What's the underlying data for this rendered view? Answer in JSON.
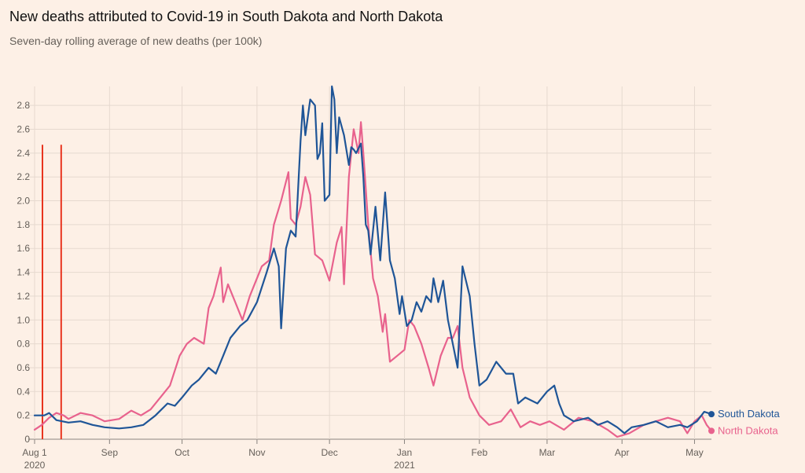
{
  "header": {
    "title": "New deaths attributed to Covid-19 in South Dakota and North Dakota",
    "subtitle": "Seven-day rolling average of new deaths (per 100k)"
  },
  "colors": {
    "background": "#fdf0e6",
    "south_dakota": "#1f5597",
    "north_dakota": "#e8628d",
    "markers": "#e8351f",
    "grid": "#e6d9cf"
  },
  "chart_data": {
    "type": "line",
    "title": "New deaths attributed to Covid-19 in South Dakota and North Dakota",
    "subtitle": "Seven-day rolling average of new deaths (per 100k)",
    "xlabel": "",
    "ylabel": "",
    "ylim": [
      0,
      2.9
    ],
    "xlim": [
      "2020-08-01",
      "2021-05-08"
    ],
    "grid": true,
    "y_ticks": [
      0,
      0.2,
      0.4,
      0.6,
      0.8,
      1.0,
      1.2,
      1.4,
      1.6,
      1.8,
      2.0,
      2.2,
      2.4,
      2.6,
      2.8
    ],
    "x_ticks": [
      {
        "date": "2020-08-01",
        "label": "Aug 1",
        "sub": "2020"
      },
      {
        "date": "2020-09-01",
        "label": "Sep",
        "sub": ""
      },
      {
        "date": "2020-10-01",
        "label": "Oct",
        "sub": ""
      },
      {
        "date": "2020-11-01",
        "label": "Nov",
        "sub": ""
      },
      {
        "date": "2020-12-01",
        "label": "Dec",
        "sub": ""
      },
      {
        "date": "2021-01-01",
        "label": "Jan",
        "sub": "2021"
      },
      {
        "date": "2021-02-01",
        "label": "Feb",
        "sub": ""
      },
      {
        "date": "2021-03-01",
        "label": "Mar",
        "sub": ""
      },
      {
        "date": "2021-04-01",
        "label": "Apr",
        "sub": ""
      },
      {
        "date": "2021-05-01",
        "label": "May",
        "sub": ""
      }
    ],
    "markers": [
      {
        "date": "2020-08-01",
        "height": 2.47
      },
      {
        "date": "2020-08-12",
        "height": 2.47
      }
    ],
    "series": [
      {
        "name": "South Dakota",
        "points": [
          [
            "2020-08-01",
            0.2
          ],
          [
            "2020-08-05",
            0.2
          ],
          [
            "2020-08-07",
            0.22
          ],
          [
            "2020-08-10",
            0.16
          ],
          [
            "2020-08-15",
            0.14
          ],
          [
            "2020-08-20",
            0.15
          ],
          [
            "2020-08-25",
            0.12
          ],
          [
            "2020-08-30",
            0.1
          ],
          [
            "2020-09-05",
            0.09
          ],
          [
            "2020-09-10",
            0.1
          ],
          [
            "2020-09-15",
            0.12
          ],
          [
            "2020-09-20",
            0.2
          ],
          [
            "2020-09-25",
            0.3
          ],
          [
            "2020-09-28",
            0.28
          ],
          [
            "2020-10-01",
            0.35
          ],
          [
            "2020-10-05",
            0.45
          ],
          [
            "2020-10-08",
            0.5
          ],
          [
            "2020-10-12",
            0.6
          ],
          [
            "2020-10-15",
            0.55
          ],
          [
            "2020-10-18",
            0.7
          ],
          [
            "2020-10-21",
            0.85
          ],
          [
            "2020-10-25",
            0.95
          ],
          [
            "2020-10-28",
            1.0
          ],
          [
            "2020-11-01",
            1.15
          ],
          [
            "2020-11-05",
            1.4
          ],
          [
            "2020-11-08",
            1.6
          ],
          [
            "2020-11-10",
            1.45
          ],
          [
            "2020-11-11",
            0.93
          ],
          [
            "2020-11-13",
            1.6
          ],
          [
            "2020-11-15",
            1.75
          ],
          [
            "2020-11-17",
            1.7
          ],
          [
            "2020-11-19",
            2.5
          ],
          [
            "2020-11-20",
            2.8
          ],
          [
            "2020-11-21",
            2.55
          ],
          [
            "2020-11-23",
            2.85
          ],
          [
            "2020-11-25",
            2.8
          ],
          [
            "2020-11-26",
            2.35
          ],
          [
            "2020-11-27",
            2.4
          ],
          [
            "2020-11-28",
            2.65
          ],
          [
            "2020-11-29",
            2.0
          ],
          [
            "2020-12-01",
            2.05
          ],
          [
            "2020-12-02",
            2.96
          ],
          [
            "2020-12-03",
            2.85
          ],
          [
            "2020-12-04",
            2.4
          ],
          [
            "2020-12-05",
            2.7
          ],
          [
            "2020-12-07",
            2.55
          ],
          [
            "2020-12-09",
            2.3
          ],
          [
            "2020-12-10",
            2.45
          ],
          [
            "2020-12-11",
            2.43
          ],
          [
            "2020-12-12",
            2.4
          ],
          [
            "2020-12-14",
            2.48
          ],
          [
            "2020-12-15",
            2.2
          ],
          [
            "2020-12-16",
            1.8
          ],
          [
            "2020-12-17",
            1.75
          ],
          [
            "2020-12-18",
            1.55
          ],
          [
            "2020-12-20",
            1.95
          ],
          [
            "2020-12-22",
            1.5
          ],
          [
            "2020-12-24",
            2.07
          ],
          [
            "2020-12-26",
            1.5
          ],
          [
            "2020-12-28",
            1.35
          ],
          [
            "2020-12-30",
            1.05
          ],
          [
            "2020-12-31",
            1.2
          ],
          [
            "2021-01-02",
            0.95
          ],
          [
            "2021-01-04",
            1.0
          ],
          [
            "2021-01-06",
            1.15
          ],
          [
            "2021-01-08",
            1.07
          ],
          [
            "2021-01-10",
            1.2
          ],
          [
            "2021-01-12",
            1.15
          ],
          [
            "2021-01-13",
            1.35
          ],
          [
            "2021-01-15",
            1.15
          ],
          [
            "2021-01-17",
            1.33
          ],
          [
            "2021-01-19",
            1.0
          ],
          [
            "2021-01-21",
            0.8
          ],
          [
            "2021-01-23",
            0.6
          ],
          [
            "2021-01-25",
            1.45
          ],
          [
            "2021-01-28",
            1.2
          ],
          [
            "2021-01-30",
            0.8
          ],
          [
            "2021-02-01",
            0.45
          ],
          [
            "2021-02-04",
            0.5
          ],
          [
            "2021-02-08",
            0.65
          ],
          [
            "2021-02-12",
            0.55
          ],
          [
            "2021-02-15",
            0.55
          ],
          [
            "2021-02-17",
            0.3
          ],
          [
            "2021-02-20",
            0.35
          ],
          [
            "2021-02-25",
            0.3
          ],
          [
            "2021-03-01",
            0.4
          ],
          [
            "2021-03-04",
            0.45
          ],
          [
            "2021-03-06",
            0.3
          ],
          [
            "2021-03-08",
            0.2
          ],
          [
            "2021-03-12",
            0.15
          ],
          [
            "2021-03-18",
            0.18
          ],
          [
            "2021-03-22",
            0.12
          ],
          [
            "2021-03-26",
            0.15
          ],
          [
            "2021-03-30",
            0.1
          ],
          [
            "2021-04-02",
            0.05
          ],
          [
            "2021-04-05",
            0.1
          ],
          [
            "2021-04-10",
            0.12
          ],
          [
            "2021-04-15",
            0.15
          ],
          [
            "2021-04-20",
            0.1
          ],
          [
            "2021-04-25",
            0.12
          ],
          [
            "2021-04-28",
            0.1
          ],
          [
            "2021-05-02",
            0.15
          ],
          [
            "2021-05-05",
            0.23
          ],
          [
            "2021-05-08",
            0.21
          ]
        ]
      },
      {
        "name": "North Dakota",
        "points": [
          [
            "2020-08-01",
            0.08
          ],
          [
            "2020-08-04",
            0.12
          ],
          [
            "2020-08-07",
            0.18
          ],
          [
            "2020-08-10",
            0.22
          ],
          [
            "2020-08-13",
            0.2
          ],
          [
            "2020-08-15",
            0.17
          ],
          [
            "2020-08-20",
            0.22
          ],
          [
            "2020-08-25",
            0.2
          ],
          [
            "2020-08-30",
            0.15
          ],
          [
            "2020-09-05",
            0.17
          ],
          [
            "2020-09-10",
            0.24
          ],
          [
            "2020-09-14",
            0.2
          ],
          [
            "2020-09-18",
            0.25
          ],
          [
            "2020-09-22",
            0.35
          ],
          [
            "2020-09-26",
            0.45
          ],
          [
            "2020-09-30",
            0.7
          ],
          [
            "2020-10-03",
            0.8
          ],
          [
            "2020-10-06",
            0.85
          ],
          [
            "2020-10-10",
            0.8
          ],
          [
            "2020-10-12",
            1.1
          ],
          [
            "2020-10-14",
            1.2
          ],
          [
            "2020-10-17",
            1.44
          ],
          [
            "2020-10-18",
            1.15
          ],
          [
            "2020-10-20",
            1.3
          ],
          [
            "2020-10-23",
            1.15
          ],
          [
            "2020-10-26",
            1.0
          ],
          [
            "2020-10-29",
            1.2
          ],
          [
            "2020-11-01",
            1.35
          ],
          [
            "2020-11-03",
            1.45
          ],
          [
            "2020-11-06",
            1.5
          ],
          [
            "2020-11-08",
            1.8
          ],
          [
            "2020-11-11",
            2.0
          ],
          [
            "2020-11-14",
            2.24
          ],
          [
            "2020-11-15",
            1.85
          ],
          [
            "2020-11-17",
            1.8
          ],
          [
            "2020-11-19",
            1.95
          ],
          [
            "2020-11-21",
            2.2
          ],
          [
            "2020-11-23",
            2.05
          ],
          [
            "2020-11-25",
            1.55
          ],
          [
            "2020-11-28",
            1.5
          ],
          [
            "2020-12-01",
            1.33
          ],
          [
            "2020-12-04",
            1.65
          ],
          [
            "2020-12-06",
            1.78
          ],
          [
            "2020-12-07",
            1.3
          ],
          [
            "2020-12-09",
            2.2
          ],
          [
            "2020-12-11",
            2.6
          ],
          [
            "2020-12-13",
            2.4
          ],
          [
            "2020-12-14",
            2.66
          ],
          [
            "2020-12-15",
            2.4
          ],
          [
            "2020-12-17",
            1.8
          ],
          [
            "2020-12-19",
            1.35
          ],
          [
            "2020-12-21",
            1.2
          ],
          [
            "2020-12-23",
            0.9
          ],
          [
            "2020-12-24",
            1.05
          ],
          [
            "2020-12-26",
            0.65
          ],
          [
            "2020-12-29",
            0.7
          ],
          [
            "2021-01-01",
            0.75
          ],
          [
            "2021-01-03",
            1.0
          ],
          [
            "2021-01-05",
            0.95
          ],
          [
            "2021-01-08",
            0.8
          ],
          [
            "2021-01-11",
            0.6
          ],
          [
            "2021-01-13",
            0.45
          ],
          [
            "2021-01-16",
            0.7
          ],
          [
            "2021-01-19",
            0.85
          ],
          [
            "2021-01-21",
            0.85
          ],
          [
            "2021-01-23",
            0.95
          ],
          [
            "2021-01-25",
            0.6
          ],
          [
            "2021-01-28",
            0.35
          ],
          [
            "2021-02-01",
            0.2
          ],
          [
            "2021-02-05",
            0.12
          ],
          [
            "2021-02-10",
            0.15
          ],
          [
            "2021-02-14",
            0.25
          ],
          [
            "2021-02-18",
            0.1
          ],
          [
            "2021-02-22",
            0.15
          ],
          [
            "2021-02-26",
            0.12
          ],
          [
            "2021-03-02",
            0.15
          ],
          [
            "2021-03-08",
            0.08
          ],
          [
            "2021-03-14",
            0.18
          ],
          [
            "2021-03-20",
            0.15
          ],
          [
            "2021-03-26",
            0.08
          ],
          [
            "2021-03-30",
            0.02
          ],
          [
            "2021-04-04",
            0.05
          ],
          [
            "2021-04-10",
            0.12
          ],
          [
            "2021-04-15",
            0.15
          ],
          [
            "2021-04-20",
            0.18
          ],
          [
            "2021-04-25",
            0.15
          ],
          [
            "2021-04-28",
            0.05
          ],
          [
            "2021-05-01",
            0.15
          ],
          [
            "2021-05-04",
            0.2
          ],
          [
            "2021-05-06",
            0.12
          ],
          [
            "2021-05-08",
            0.07
          ]
        ]
      }
    ]
  }
}
